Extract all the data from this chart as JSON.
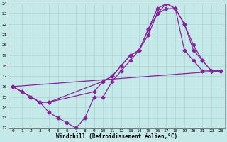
{
  "xlabel": "Windchill (Refroidissement éolien,°C)",
  "xlim": [
    -0.5,
    23.5
  ],
  "ylim": [
    12,
    24
  ],
  "yticks": [
    12,
    13,
    14,
    15,
    16,
    17,
    18,
    19,
    20,
    21,
    22,
    23,
    24
  ],
  "xticks": [
    0,
    1,
    2,
    3,
    4,
    5,
    6,
    7,
    8,
    9,
    10,
    11,
    12,
    13,
    14,
    15,
    16,
    17,
    18,
    19,
    20,
    21,
    22,
    23
  ],
  "bg_color": "#c5e8e8",
  "line_color": "#882299",
  "grid_color": "#aad4d4",
  "line1_x": [
    0,
    1,
    2,
    3,
    4,
    5,
    6,
    7,
    8,
    9,
    10,
    11,
    12,
    13,
    14,
    15,
    16,
    17,
    18,
    19,
    20,
    21,
    22,
    23
  ],
  "line1_y": [
    16.0,
    15.5,
    15.0,
    14.5,
    13.5,
    13.0,
    12.5,
    12.0,
    13.0,
    15.0,
    15.0,
    16.5,
    17.5,
    18.5,
    19.5,
    21.0,
    23.0,
    23.5,
    23.5,
    19.5,
    18.5,
    17.5,
    17.5,
    17.5
  ],
  "line2_x": [
    0,
    2,
    3,
    4,
    9,
    10,
    11,
    12,
    13,
    14,
    15,
    16,
    17,
    18,
    19,
    20,
    21,
    22,
    23
  ],
  "line2_y": [
    16.0,
    15.0,
    14.5,
    14.5,
    15.5,
    16.5,
    17.0,
    18.0,
    19.0,
    19.5,
    21.5,
    23.0,
    24.0,
    23.5,
    22.0,
    20.0,
    18.5,
    17.5,
    17.5
  ],
  "line3_x": [
    0,
    2,
    3,
    4,
    10,
    11,
    12,
    13,
    14,
    15,
    16,
    17,
    18,
    19,
    20,
    21,
    22,
    23
  ],
  "line3_y": [
    16.0,
    15.0,
    14.5,
    14.5,
    16.5,
    17.0,
    18.0,
    19.0,
    19.5,
    21.5,
    23.5,
    24.0,
    23.5,
    22.0,
    19.5,
    18.5,
    17.5,
    17.5
  ],
  "line4_x": [
    0,
    23
  ],
  "line4_y": [
    16.0,
    17.5
  ],
  "marker": "D",
  "marker_size": 2.5,
  "linewidth": 0.9
}
